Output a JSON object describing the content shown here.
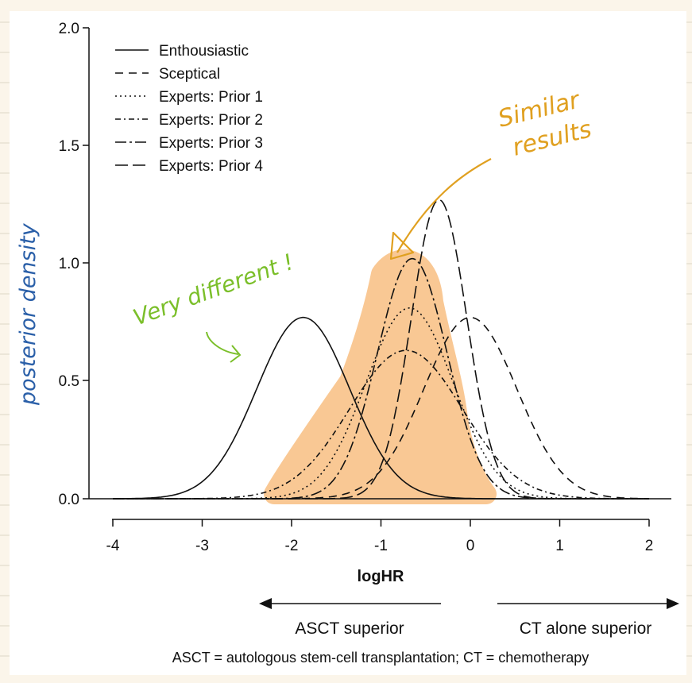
{
  "chart_data": {
    "type": "line",
    "title": "",
    "xlabel": "logHR",
    "ylabel": "posterior density",
    "xlim": [
      -4,
      2
    ],
    "ylim": [
      0,
      2
    ],
    "x_ticks": [
      "-4",
      "-3",
      "-2",
      "-1",
      "0",
      "1",
      "2"
    ],
    "y_ticks": [
      "0.0",
      "0.5",
      "1.0",
      "1.5",
      "2.0"
    ],
    "legend_position": "top-left",
    "series": [
      {
        "name": "Enthousiastic",
        "style": "solid",
        "peak_x": -1.87,
        "peak_y": 0.77,
        "sd": 0.52
      },
      {
        "name": "Sceptical",
        "style": "dashed",
        "peak_x": 0.0,
        "peak_y": 0.77,
        "sd": 0.52
      },
      {
        "name": "Experts: Prior 1",
        "style": "dotted",
        "peak_x": -0.68,
        "peak_y": 0.81,
        "sd": 0.49
      },
      {
        "name": "Experts: Prior 2",
        "style": "dashdot",
        "peak_x": -0.72,
        "peak_y": 0.63,
        "sd": 0.63
      },
      {
        "name": "Experts: Prior 3",
        "style": "longdashdot",
        "peak_x": -0.65,
        "peak_y": 1.02,
        "sd": 0.39
      },
      {
        "name": "Experts: Prior 4",
        "style": "longdash",
        "peak_x": -0.35,
        "peak_y": 1.27,
        "sd": 0.31
      }
    ],
    "direction_left": "ASCT superior",
    "direction_right": "CT alone superior",
    "caption": "ASCT = autologous stem-cell transplantation; CT = chemotherapy"
  },
  "annotations": {
    "similar_line1": "Similar",
    "similar_line2": "results",
    "different": "Very different !",
    "ylabel_hand": "posterior density"
  },
  "colors": {
    "highlight": "#f9c894",
    "green_note": "#7bbf2a",
    "orange_note": "#e0a020",
    "blue_note": "#2a5fa8",
    "paper_lines": "#ddd6c6"
  }
}
